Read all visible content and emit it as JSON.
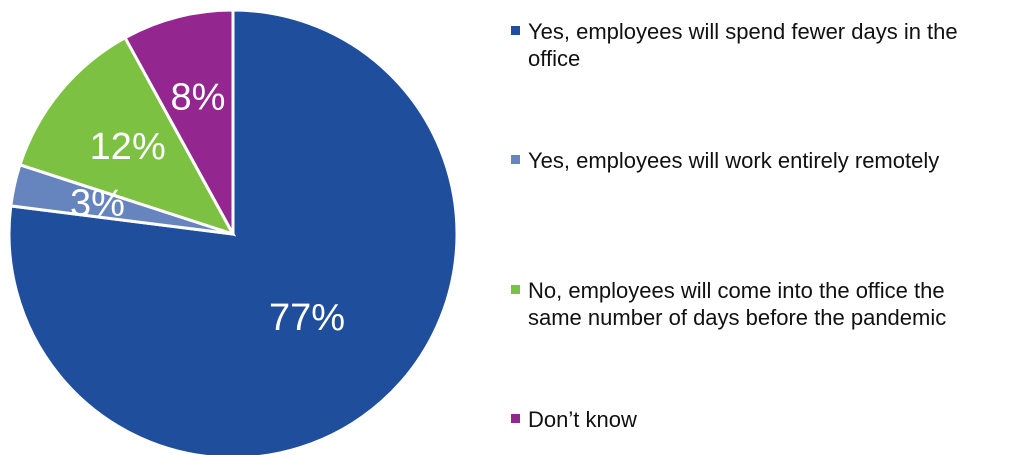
{
  "chart_data": {
    "type": "pie",
    "title": "",
    "categories": [
      "Yes, employees will spend fewer days in the office",
      "Yes, employees will work entirely remotely",
      "No, employees will come into the office the same number of days before the pandemic",
      "Don’t know"
    ],
    "values": [
      77,
      3,
      12,
      8
    ],
    "labels": [
      "77%",
      "3%",
      "12%",
      "8%"
    ],
    "colors": [
      "#1f4e9c",
      "#6685bf",
      "#7dc142",
      "#93278f"
    ],
    "legend_position": "right"
  }
}
